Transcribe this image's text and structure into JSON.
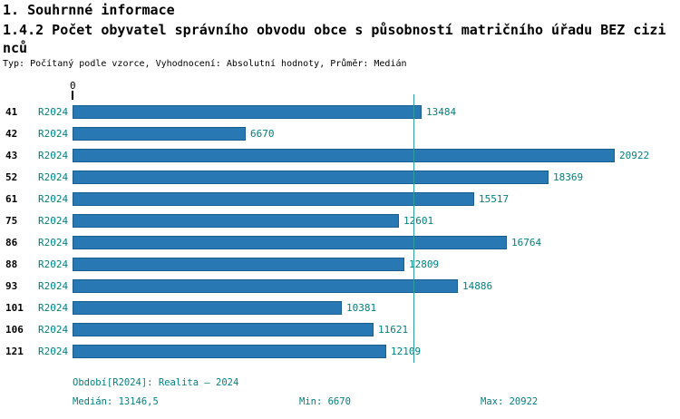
{
  "title": "1. Souhrnné informace",
  "subtitle": "1.4.2 Počet obyvatel správního obvodu obce s působností matričního úřadu BEZ cizinců",
  "meta": "Typ: Počítaný podle vzorce, Vyhodnocení: Absolutní hodnoty, Průměr: Medián",
  "axis": {
    "origin_label": "0"
  },
  "chart_data": {
    "type": "bar",
    "orientation": "horizontal",
    "categories": [
      "41",
      "42",
      "43",
      "52",
      "61",
      "75",
      "86",
      "88",
      "93",
      "101",
      "106",
      "121"
    ],
    "series": [
      {
        "name": "R2024",
        "values": [
          13484,
          6670,
          20922,
          18369,
          15517,
          12601,
          16764,
          12809,
          14886,
          10381,
          11621,
          12109
        ]
      }
    ],
    "xlim": [
      0,
      21000
    ],
    "median_line_value": 13146.5,
    "stats": {
      "median": 13146.5,
      "min": 6670,
      "max": 20922
    },
    "grid": "off",
    "legend": "none",
    "colors": {
      "bar": "#2878b4",
      "bar_border": "#1b5d8c",
      "accent_text": "#008080",
      "median_line": "#2f9e9e"
    }
  },
  "footer": {
    "period": "Období[R2024]: Realita – 2024",
    "median": "Medián: 13146,5",
    "min": "Min: 6670",
    "max": "Max: 20922"
  }
}
